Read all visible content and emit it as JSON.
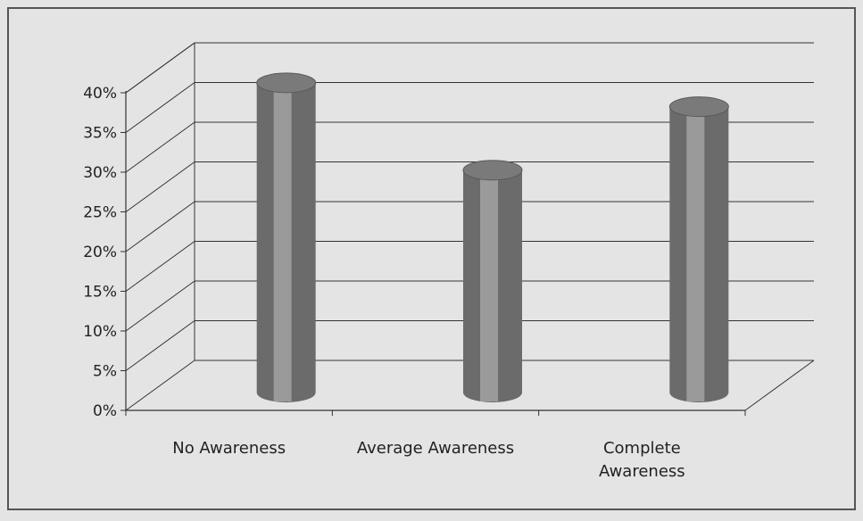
{
  "chart_data": {
    "type": "bar",
    "style": "3d-cylinder",
    "categories": [
      "No Awareness",
      "Average Awareness",
      "Complete Awareness"
    ],
    "category_label_lines": [
      [
        "No Awareness"
      ],
      [
        "Average Awareness"
      ],
      [
        "Complete",
        "Awareness"
      ]
    ],
    "values": [
      39,
      28,
      36
    ],
    "ylim": [
      0,
      40
    ],
    "yticks": [
      0,
      5,
      10,
      15,
      20,
      25,
      30,
      35,
      40
    ],
    "ytick_labels": [
      "0%",
      "5%",
      "10%",
      "15%",
      "20%",
      "25%",
      "30%",
      "35%",
      "40%"
    ],
    "grid": true,
    "legend": "none",
    "title": "",
    "xlabel": "",
    "ylabel": ""
  },
  "colors": {
    "background": "#e4e4e4",
    "frame": "#555555",
    "grid": "#333333",
    "bar_dark": "#6b6b6b",
    "bar_light": "#9a9a9a",
    "bar_top": "#7a7a7a"
  }
}
